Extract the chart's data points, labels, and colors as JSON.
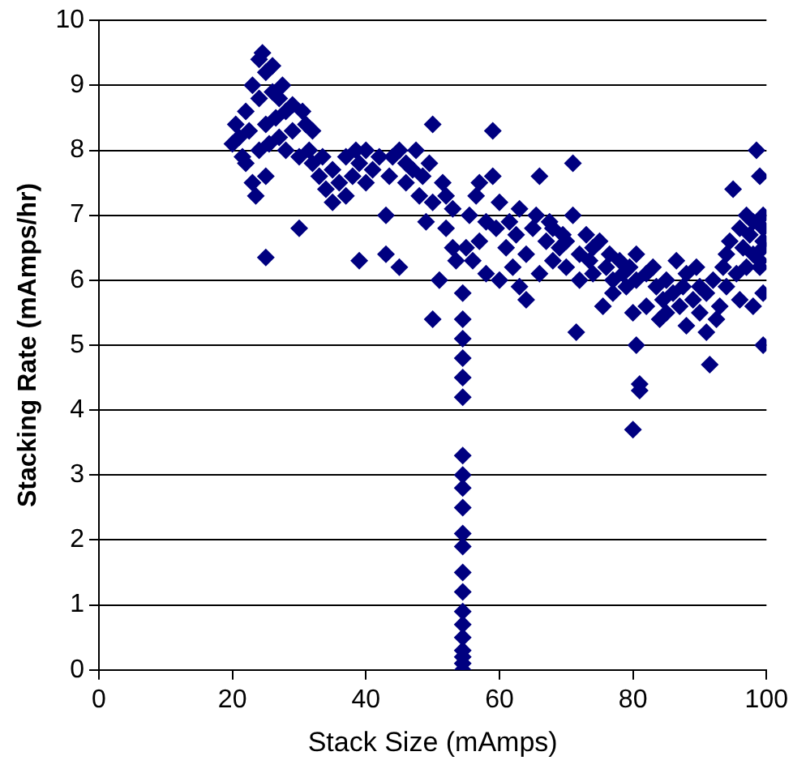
{
  "chart_data": {
    "type": "scatter",
    "xlabel": "Stack Size (mAmps)",
    "ylabel": "Stacking Rate (mAmps/hr)",
    "xlim": [
      0,
      100
    ],
    "xticks": [
      0,
      20,
      40,
      60,
      80,
      100
    ],
    "ylim": [
      0,
      10
    ],
    "yticks": [
      0,
      1,
      2,
      3,
      4,
      5,
      6,
      7,
      8,
      9,
      10
    ],
    "grid": "y",
    "legend": false,
    "marker": "diamond",
    "series": [
      {
        "color": "#000080",
        "x": [
          20,
          20.5,
          21,
          21.5,
          22,
          22,
          22.5,
          23,
          23,
          23.5,
          24,
          24,
          24,
          24.5,
          25,
          25,
          25,
          25,
          25.5,
          26,
          26,
          26.5,
          27,
          27,
          27.5,
          28,
          28,
          29,
          29,
          30,
          30,
          30.5,
          31,
          31.5,
          32,
          32,
          33,
          33.5,
          34,
          35,
          35,
          36,
          37,
          37,
          38,
          38.5,
          39,
          39,
          40,
          40,
          41,
          42,
          43,
          43,
          43.5,
          44,
          45,
          45,
          46,
          46,
          47,
          47.5,
          48,
          48.5,
          49,
          49.5,
          50,
          50,
          50,
          51,
          51.5,
          52,
          52,
          53,
          53,
          53.5,
          54.5,
          54.5,
          54.5,
          54.5,
          54.5,
          54.5,
          54.5,
          54.5,
          54.5,
          54.5,
          54.5,
          54.5,
          54.5,
          54.5,
          54.5,
          54.5,
          54.5,
          54.5,
          54.5,
          54.5,
          54.5,
          55,
          55.5,
          56,
          56.5,
          57,
          57,
          58,
          58,
          59,
          59,
          59.5,
          60,
          60,
          61,
          61.5,
          62,
          62.5,
          63,
          63,
          64,
          64,
          65,
          65.5,
          66,
          66,
          67,
          67.5,
          68,
          68,
          69,
          69.5,
          70,
          70,
          71,
          71,
          71.5,
          72,
          72,
          73,
          73.5,
          74,
          74,
          75,
          75.5,
          76,
          76.5,
          77,
          77,
          78,
          78.5,
          79,
          79.5,
          80,
          80,
          80.5,
          80.5,
          80.5,
          81,
          81,
          82,
          82,
          83,
          83.5,
          84,
          84.5,
          85,
          85,
          86,
          86.5,
          87,
          87.5,
          88,
          88,
          89,
          89.5,
          90,
          90,
          91,
          91,
          91.5,
          92,
          92.5,
          93,
          93.5,
          94,
          94,
          94.5,
          95,
          95.5,
          96,
          96,
          96.5,
          97,
          97,
          97.5,
          98,
          98,
          98,
          98.5,
          99,
          99,
          99.5,
          99.5,
          99.5,
          99.5,
          99.5,
          99.5,
          99
        ],
        "values": [
          8.1,
          8.4,
          8.2,
          7.9,
          7.8,
          8.6,
          8.3,
          7.5,
          9.0,
          7.3,
          8.0,
          9.4,
          8.8,
          9.5,
          7.6,
          8.4,
          9.2,
          6.35,
          8.1,
          8.9,
          9.3,
          8.5,
          8.2,
          8.8,
          9.0,
          8.6,
          8.0,
          8.3,
          8.7,
          7.9,
          6.8,
          8.6,
          8.4,
          8.0,
          7.8,
          8.3,
          7.6,
          7.9,
          7.4,
          7.2,
          7.7,
          7.5,
          7.3,
          7.9,
          7.6,
          8.0,
          6.3,
          7.8,
          7.5,
          8.0,
          7.7,
          7.9,
          7.0,
          6.4,
          7.6,
          7.9,
          6.2,
          8.0,
          7.5,
          7.8,
          7.7,
          8.0,
          7.3,
          7.6,
          6.9,
          7.8,
          8.4,
          5.4,
          7.2,
          6.0,
          7.5,
          6.8,
          7.3,
          6.5,
          7.1,
          6.3,
          0,
          0.1,
          0.2,
          0.3,
          0.5,
          0.7,
          0.9,
          1.2,
          1.5,
          1.9,
          2.1,
          2.5,
          2.8,
          3.0,
          3.3,
          4.2,
          4.5,
          4.8,
          5.1,
          5.4,
          5.8,
          6.5,
          7.0,
          6.3,
          7.3,
          6.6,
          7.5,
          6.1,
          6.9,
          8.3,
          7.6,
          6.8,
          6.0,
          7.2,
          6.5,
          6.9,
          6.2,
          6.7,
          5.9,
          7.1,
          5.7,
          6.4,
          6.8,
          7.0,
          6.1,
          7.6,
          6.6,
          6.9,
          6.3,
          6.8,
          6.5,
          6.7,
          6.2,
          6.6,
          7.0,
          7.8,
          5.2,
          6.4,
          6.0,
          6.7,
          6.3,
          6.5,
          6.1,
          6.6,
          5.6,
          6.2,
          6.4,
          6.0,
          5.8,
          6.3,
          6.1,
          5.9,
          6.2,
          3.7,
          5.5,
          6.0,
          6.4,
          5.0,
          4.4,
          4.3,
          6.1,
          5.6,
          6.2,
          5.9,
          5.4,
          5.7,
          6.0,
          5.5,
          5.8,
          6.3,
          5.6,
          5.9,
          5.3,
          6.1,
          5.7,
          6.2,
          5.5,
          5.9,
          5.2,
          5.8,
          4.7,
          6.0,
          5.4,
          5.6,
          6.2,
          5.9,
          6.4,
          6.6,
          7.4,
          6.1,
          6.8,
          5.7,
          6.5,
          7.0,
          6.2,
          6.7,
          5.6,
          6.4,
          6.9,
          8.0,
          7.6,
          6.3,
          6.8,
          5.8,
          6.5,
          5.0,
          7.0,
          6.6,
          6.2
        ]
      }
    ]
  }
}
